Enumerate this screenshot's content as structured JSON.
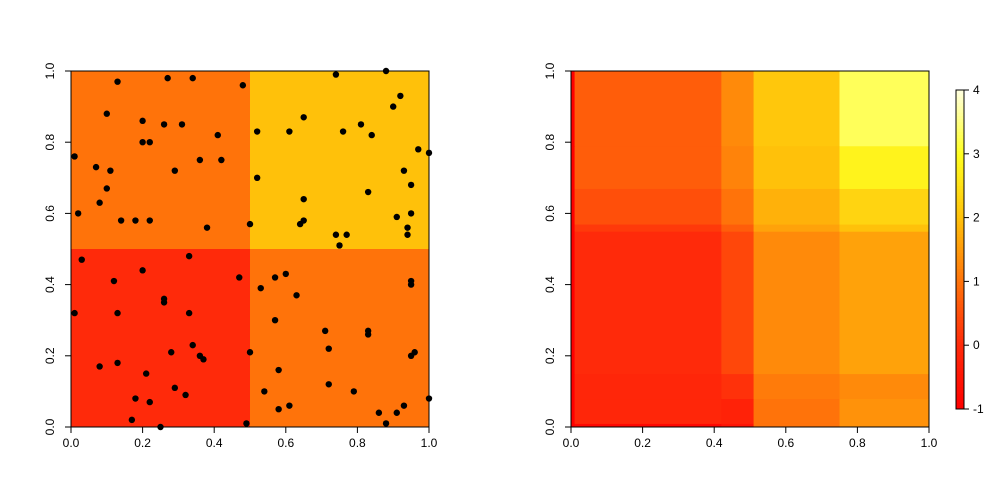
{
  "chart_data": [
    {
      "type": "heatmap",
      "title": "",
      "xlabel": "",
      "ylabel": "",
      "xlim": [
        0,
        1
      ],
      "ylim": [
        0,
        1
      ],
      "x_ticks": [
        {
          "value": 0.0,
          "label": "0.0"
        },
        {
          "value": 0.2,
          "label": "0.2"
        },
        {
          "value": 0.4,
          "label": "0.4"
        },
        {
          "value": 0.6,
          "label": "0.6"
        },
        {
          "value": 0.8,
          "label": "0.8"
        },
        {
          "value": 1.0,
          "label": "1.0"
        }
      ],
      "y_ticks": [
        {
          "value": 0.0,
          "label": "0.0"
        },
        {
          "value": 0.2,
          "label": "0.2"
        },
        {
          "value": 0.4,
          "label": "0.4"
        },
        {
          "value": 0.6,
          "label": "0.6"
        },
        {
          "value": 0.8,
          "label": "0.8"
        },
        {
          "value": 1.0,
          "label": "1.0"
        }
      ],
      "grid": false,
      "cells": [
        {
          "x0": 0.0,
          "x1": 0.5,
          "y0": 0.0,
          "y1": 0.5,
          "color": "#FF2A0A"
        },
        {
          "x0": 0.5,
          "x1": 1.0,
          "y0": 0.0,
          "y1": 0.5,
          "color": "#FF730A"
        },
        {
          "x0": 0.0,
          "x1": 0.5,
          "y0": 0.5,
          "y1": 1.0,
          "color": "#FF730A"
        },
        {
          "x0": 0.5,
          "x1": 1.0,
          "y0": 0.5,
          "y1": 1.0,
          "color": "#FFC10A"
        }
      ],
      "points_color": "#000000",
      "points": [
        [
          0.01,
          0.76
        ],
        [
          0.02,
          0.6
        ],
        [
          0.08,
          0.63
        ],
        [
          0.07,
          0.73
        ],
        [
          0.1,
          0.67
        ],
        [
          0.11,
          0.72
        ],
        [
          0.13,
          0.97
        ],
        [
          0.1,
          0.88
        ],
        [
          0.2,
          0.86
        ],
        [
          0.2,
          0.8
        ],
        [
          0.22,
          0.8
        ],
        [
          0.26,
          0.85
        ],
        [
          0.27,
          0.98
        ],
        [
          0.31,
          0.85
        ],
        [
          0.34,
          0.98
        ],
        [
          0.29,
          0.72
        ],
        [
          0.36,
          0.75
        ],
        [
          0.41,
          0.82
        ],
        [
          0.42,
          0.75
        ],
        [
          0.48,
          0.96
        ],
        [
          0.38,
          0.56
        ],
        [
          0.14,
          0.58
        ],
        [
          0.18,
          0.58
        ],
        [
          0.22,
          0.58
        ],
        [
          0.52,
          0.83
        ],
        [
          0.52,
          0.7
        ],
        [
          0.5,
          0.57
        ],
        [
          0.61,
          0.83
        ],
        [
          0.65,
          0.87
        ],
        [
          0.65,
          0.64
        ],
        [
          0.65,
          0.58
        ],
        [
          0.64,
          0.57
        ],
        [
          0.74,
          0.99
        ],
        [
          0.76,
          0.83
        ],
        [
          0.81,
          0.85
        ],
        [
          0.84,
          0.82
        ],
        [
          0.83,
          0.66
        ],
        [
          0.88,
          1.0
        ],
        [
          0.9,
          0.9
        ],
        [
          0.92,
          0.93
        ],
        [
          0.97,
          0.78
        ],
        [
          1.0,
          0.77
        ],
        [
          0.93,
          0.72
        ],
        [
          0.95,
          0.68
        ],
        [
          0.91,
          0.59
        ],
        [
          0.95,
          0.6
        ],
        [
          0.94,
          0.56
        ],
        [
          0.94,
          0.54
        ],
        [
          0.74,
          0.54
        ],
        [
          0.77,
          0.54
        ],
        [
          0.75,
          0.51
        ],
        [
          0.03,
          0.47
        ],
        [
          0.01,
          0.32
        ],
        [
          0.12,
          0.41
        ],
        [
          0.13,
          0.32
        ],
        [
          0.13,
          0.18
        ],
        [
          0.08,
          0.17
        ],
        [
          0.2,
          0.44
        ],
        [
          0.26,
          0.36
        ],
        [
          0.26,
          0.35
        ],
        [
          0.33,
          0.48
        ],
        [
          0.33,
          0.32
        ],
        [
          0.34,
          0.23
        ],
        [
          0.36,
          0.2
        ],
        [
          0.37,
          0.19
        ],
        [
          0.28,
          0.21
        ],
        [
          0.21,
          0.15
        ],
        [
          0.18,
          0.08
        ],
        [
          0.22,
          0.07
        ],
        [
          0.17,
          0.02
        ],
        [
          0.25,
          0.0
        ],
        [
          0.29,
          0.11
        ],
        [
          0.32,
          0.09
        ],
        [
          0.47,
          0.42
        ],
        [
          0.5,
          0.21
        ],
        [
          0.49,
          0.01
        ],
        [
          0.57,
          0.42
        ],
        [
          0.6,
          0.43
        ],
        [
          0.53,
          0.39
        ],
        [
          0.63,
          0.37
        ],
        [
          0.57,
          0.3
        ],
        [
          0.58,
          0.16
        ],
        [
          0.54,
          0.1
        ],
        [
          0.58,
          0.05
        ],
        [
          0.61,
          0.06
        ],
        [
          0.71,
          0.27
        ],
        [
          0.72,
          0.22
        ],
        [
          0.72,
          0.12
        ],
        [
          0.79,
          0.1
        ],
        [
          0.83,
          0.27
        ],
        [
          0.83,
          0.26
        ],
        [
          0.86,
          0.04
        ],
        [
          0.88,
          0.01
        ],
        [
          0.91,
          0.04
        ],
        [
          0.93,
          0.06
        ],
        [
          0.95,
          0.41
        ],
        [
          0.95,
          0.4
        ],
        [
          0.95,
          0.2
        ],
        [
          0.96,
          0.21
        ],
        [
          1.0,
          0.08
        ]
      ]
    },
    {
      "type": "heatmap",
      "title": "",
      "xlabel": "",
      "ylabel": "",
      "xlim": [
        0,
        1
      ],
      "ylim": [
        0,
        1
      ],
      "x_ticks": [
        {
          "value": 0.0,
          "label": "0.0"
        },
        {
          "value": 0.2,
          "label": "0.2"
        },
        {
          "value": 0.4,
          "label": "0.4"
        },
        {
          "value": 0.6,
          "label": "0.6"
        },
        {
          "value": 0.8,
          "label": "0.8"
        },
        {
          "value": 1.0,
          "label": "1.0"
        }
      ],
      "y_ticks": [
        {
          "value": 0.0,
          "label": "0.0"
        },
        {
          "value": 0.2,
          "label": "0.2"
        },
        {
          "value": 0.4,
          "label": "0.4"
        },
        {
          "value": 0.6,
          "label": "0.6"
        },
        {
          "value": 0.8,
          "label": "0.8"
        },
        {
          "value": 1.0,
          "label": "1.0"
        }
      ],
      "grid": false,
      "value_range": [
        -1,
        4
      ],
      "x_breaks": [
        0.0,
        0.01,
        0.42,
        0.51,
        0.75,
        1.0
      ],
      "y_breaks": [
        0.0,
        0.01,
        0.08,
        0.15,
        0.55,
        0.57,
        0.67,
        0.79,
        1.0
      ],
      "values": [
        [
          -1.0,
          -0.8,
          -0.5,
          1.0,
          1.4
        ],
        [
          -1.0,
          -0.1,
          -0.2,
          1.0,
          1.4
        ],
        [
          -1.0,
          -0.1,
          0.1,
          1.1,
          1.3
        ],
        [
          -1.0,
          0.0,
          0.4,
          1.3,
          1.6
        ],
        [
          -1.0,
          0.2,
          0.7,
          1.6,
          2.0
        ],
        [
          -1.0,
          0.5,
          1.0,
          1.8,
          2.3
        ],
        [
          -1.0,
          0.7,
          1.2,
          2.0,
          2.8
        ],
        [
          -1.0,
          0.7,
          1.3,
          2.1,
          3.3
        ]
      ],
      "colorbar": {
        "ticks": [
          {
            "value": -1,
            "label": "-1"
          },
          {
            "value": 0,
            "label": "0"
          },
          {
            "value": 1,
            "label": "1"
          },
          {
            "value": 2,
            "label": "2"
          },
          {
            "value": 3,
            "label": "3"
          },
          {
            "value": 4,
            "label": "4"
          }
        ]
      }
    }
  ]
}
